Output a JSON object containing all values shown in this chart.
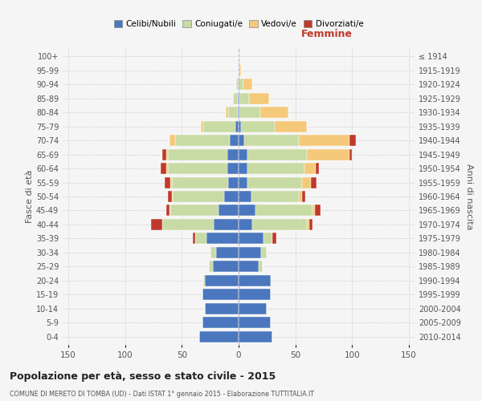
{
  "age_groups": [
    "0-4",
    "5-9",
    "10-14",
    "15-19",
    "20-24",
    "25-29",
    "30-34",
    "35-39",
    "40-44",
    "45-49",
    "50-54",
    "55-59",
    "60-64",
    "65-69",
    "70-74",
    "75-79",
    "80-84",
    "85-89",
    "90-94",
    "95-99",
    "100+"
  ],
  "birth_years": [
    "2010-2014",
    "2005-2009",
    "2000-2004",
    "1995-1999",
    "1990-1994",
    "1985-1989",
    "1980-1984",
    "1975-1979",
    "1970-1974",
    "1965-1969",
    "1960-1964",
    "1955-1959",
    "1950-1954",
    "1945-1949",
    "1940-1944",
    "1935-1939",
    "1930-1934",
    "1925-1929",
    "1920-1924",
    "1915-1919",
    "≤ 1914"
  ],
  "males": {
    "celibi": [
      35,
      32,
      30,
      32,
      30,
      23,
      20,
      28,
      22,
      18,
      13,
      9,
      10,
      10,
      8,
      3,
      1,
      1,
      0,
      0,
      0
    ],
    "coniugati": [
      0,
      0,
      0,
      0,
      1,
      3,
      5,
      10,
      45,
      42,
      45,
      50,
      52,
      52,
      48,
      28,
      8,
      4,
      2,
      0,
      0
    ],
    "vedovi": [
      0,
      0,
      0,
      0,
      0,
      0,
      0,
      0,
      0,
      1,
      1,
      1,
      2,
      2,
      5,
      2,
      2,
      0,
      0,
      0,
      0
    ],
    "divorziati": [
      0,
      0,
      0,
      0,
      0,
      0,
      0,
      2,
      10,
      3,
      3,
      5,
      5,
      3,
      0,
      0,
      0,
      0,
      0,
      0,
      0
    ]
  },
  "females": {
    "nubili": [
      30,
      28,
      25,
      28,
      28,
      18,
      20,
      22,
      12,
      15,
      11,
      8,
      8,
      8,
      5,
      2,
      1,
      1,
      0,
      0,
      0
    ],
    "coniugate": [
      0,
      0,
      0,
      0,
      1,
      3,
      5,
      8,
      48,
      50,
      42,
      48,
      50,
      52,
      48,
      30,
      18,
      8,
      4,
      1,
      0
    ],
    "vedove": [
      0,
      0,
      0,
      0,
      0,
      0,
      0,
      0,
      2,
      2,
      3,
      8,
      10,
      38,
      45,
      28,
      25,
      18,
      8,
      1,
      0
    ],
    "divorziate": [
      0,
      0,
      0,
      0,
      0,
      0,
      0,
      3,
      3,
      5,
      3,
      5,
      3,
      2,
      5,
      0,
      0,
      0,
      0,
      0,
      0
    ]
  },
  "colors": {
    "celibi_nubili": "#4b77be",
    "coniugati": "#c8dba4",
    "vedovi": "#f5c97a",
    "divorziati": "#c0392b"
  },
  "title": "Popolazione per età, sesso e stato civile - 2015",
  "subtitle": "COMUNE DI MERETO DI TOMBA (UD) - Dati ISTAT 1° gennaio 2015 - Elaborazione TUTTITALIA.IT",
  "xlabel_right": "Femmine",
  "ylabel_left": "Fasce di età",
  "ylabel_right": "Anni di nascita",
  "legend_labels": [
    "Celibi/Nubili",
    "Coniugati/e",
    "Vedovi/e",
    "Divorziati/e"
  ],
  "xlim": 155,
  "bg_color": "#f5f5f5",
  "grid_color": "#cccccc"
}
